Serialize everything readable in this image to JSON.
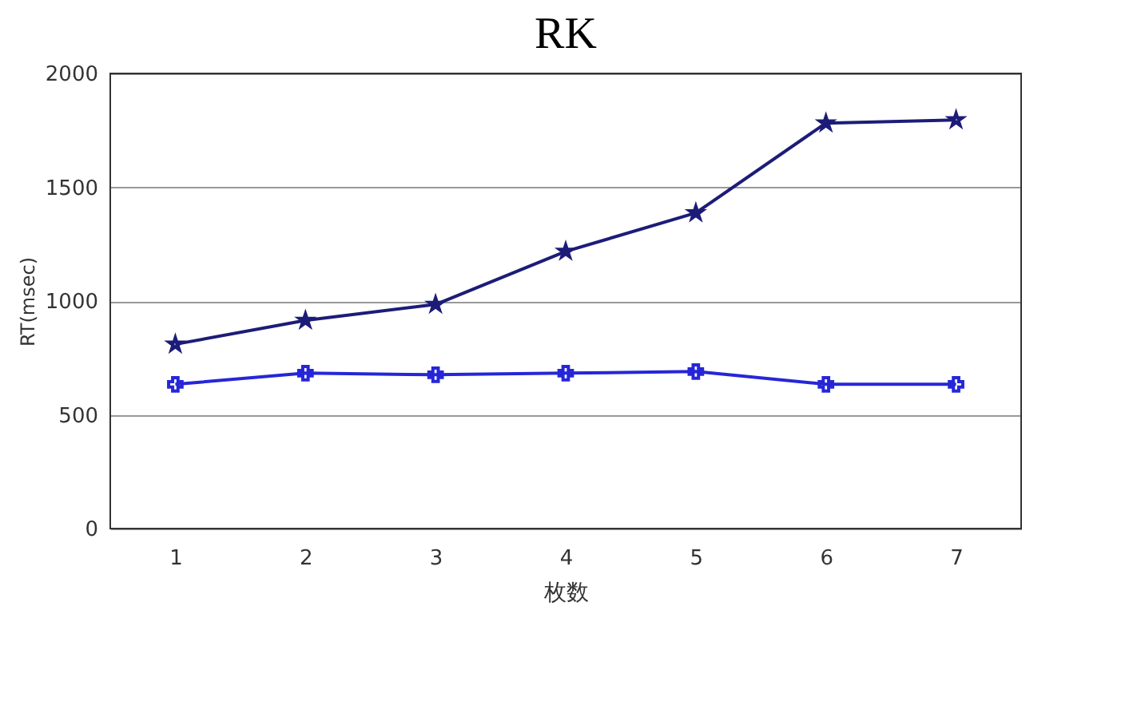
{
  "chart_data": {
    "type": "line",
    "title": "RK",
    "xlabel": "枚数",
    "ylabel": "RT(msec)",
    "categories": [
      "1",
      "2",
      "3",
      "4",
      "5",
      "6",
      "7"
    ],
    "series": [
      {
        "color": "#1c1c78",
        "marker": "star",
        "values": [
          810,
          915,
          985,
          1218,
          1387,
          1782,
          1796
        ]
      },
      {
        "color": "#2626d8",
        "marker": "cross",
        "values": [
          634,
          683,
          676,
          683,
          690,
          634,
          634
        ]
      }
    ],
    "ylim": [
      0,
      2000
    ],
    "yticks": [
      0,
      500,
      1000,
      1500,
      2000
    ],
    "grid": "y"
  }
}
